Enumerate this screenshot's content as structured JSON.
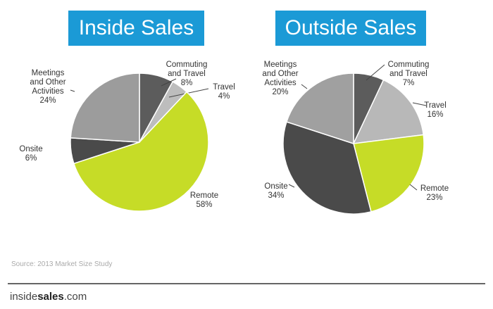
{
  "chart_data": [
    {
      "type": "pie",
      "title": "Inside Sales",
      "slices": [
        {
          "label": "Commuting and Travel",
          "lines": [
            "Commuting",
            "and Travel",
            "8%"
          ],
          "value": 8,
          "color": "#5c5c5c"
        },
        {
          "label": "Travel",
          "lines": [
            "Travel",
            "4%"
          ],
          "value": 4,
          "color": "#bdbdbd"
        },
        {
          "label": "Remote",
          "lines": [
            "Remote",
            "58%"
          ],
          "value": 58,
          "color": "#c6dc27"
        },
        {
          "label": "Onsite",
          "lines": [
            "Onsite",
            "6%"
          ],
          "value": 6,
          "color": "#4a4a4a"
        },
        {
          "label": "Meetings and Other Activities",
          "lines": [
            "Meetings",
            "and Other",
            "Activities",
            "24%"
          ],
          "value": 24,
          "color": "#9c9c9c"
        }
      ]
    },
    {
      "type": "pie",
      "title": "Outside Sales",
      "slices": [
        {
          "label": "Commuting and Travel",
          "lines": [
            "Commuting",
            "and Travel",
            "7%"
          ],
          "value": 7,
          "color": "#5c5c5c"
        },
        {
          "label": "Travel",
          "lines": [
            "Travel",
            "16%"
          ],
          "value": 16,
          "color": "#b8b8b8"
        },
        {
          "label": "Remote",
          "lines": [
            "Remote",
            "23%"
          ],
          "value": 23,
          "color": "#c6dc27"
        },
        {
          "label": "Onsite",
          "lines": [
            "Onsite",
            "34%"
          ],
          "value": 34,
          "color": "#4a4a4a"
        },
        {
          "label": "Meetings and Other Activities",
          "lines": [
            "Meetings",
            "and Other",
            "Activities",
            "20%"
          ],
          "value": 20,
          "color": "#a0a0a0"
        }
      ]
    }
  ],
  "footer": {
    "source": "Source: 2013 Market Size Study",
    "logo_prefix": "inside",
    "logo_bold": "sales",
    "logo_suffix": ".com"
  }
}
